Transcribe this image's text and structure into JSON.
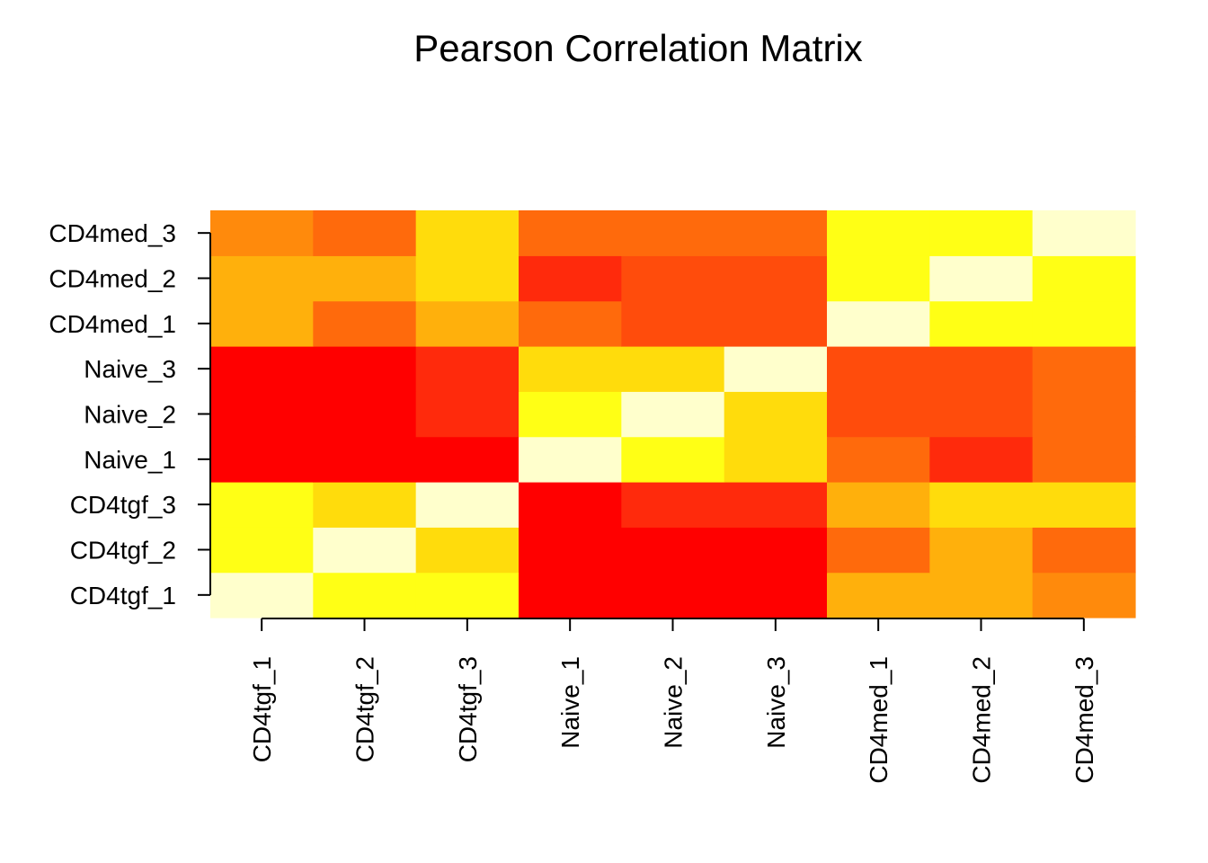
{
  "chart_data": {
    "type": "heatmap",
    "title": "Pearson Correlation Matrix",
    "x_categories": [
      "CD4tgf_1",
      "CD4tgf_2",
      "CD4tgf_3",
      "Naive_1",
      "Naive_2",
      "Naive_3",
      "CD4med_1",
      "CD4med_2",
      "CD4med_3"
    ],
    "y_categories": [
      "CD4tgf_1",
      "CD4tgf_2",
      "CD4tgf_3",
      "Naive_1",
      "Naive_2",
      "Naive_3",
      "CD4med_1",
      "CD4med_2",
      "CD4med_3"
    ],
    "color_levels": [
      "#FF0000",
      "#FF2A0C",
      "#FF4C0C",
      "#FF6A0C",
      "#FF8A0C",
      "#FFB00C",
      "#FFDC0C",
      "#FFFF15",
      "#FFFFCC"
    ],
    "values": [
      [
        8,
        7,
        7,
        0,
        0,
        0,
        5,
        5,
        4
      ],
      [
        7,
        8,
        6,
        0,
        0,
        0,
        3,
        5,
        3
      ],
      [
        7,
        6,
        8,
        0,
        1,
        1,
        5,
        6,
        6
      ],
      [
        0,
        0,
        0,
        8,
        7,
        6,
        3,
        1,
        3
      ],
      [
        0,
        0,
        1,
        7,
        8,
        6,
        2,
        2,
        3
      ],
      [
        0,
        0,
        1,
        6,
        6,
        8,
        2,
        2,
        3
      ],
      [
        5,
        3,
        5,
        3,
        2,
        2,
        8,
        7,
        7
      ],
      [
        5,
        5,
        6,
        1,
        2,
        2,
        7,
        8,
        7
      ],
      [
        4,
        3,
        6,
        3,
        3,
        3,
        7,
        7,
        8
      ]
    ],
    "xlabel": "",
    "ylabel": "",
    "legend": "none",
    "grid": false
  }
}
